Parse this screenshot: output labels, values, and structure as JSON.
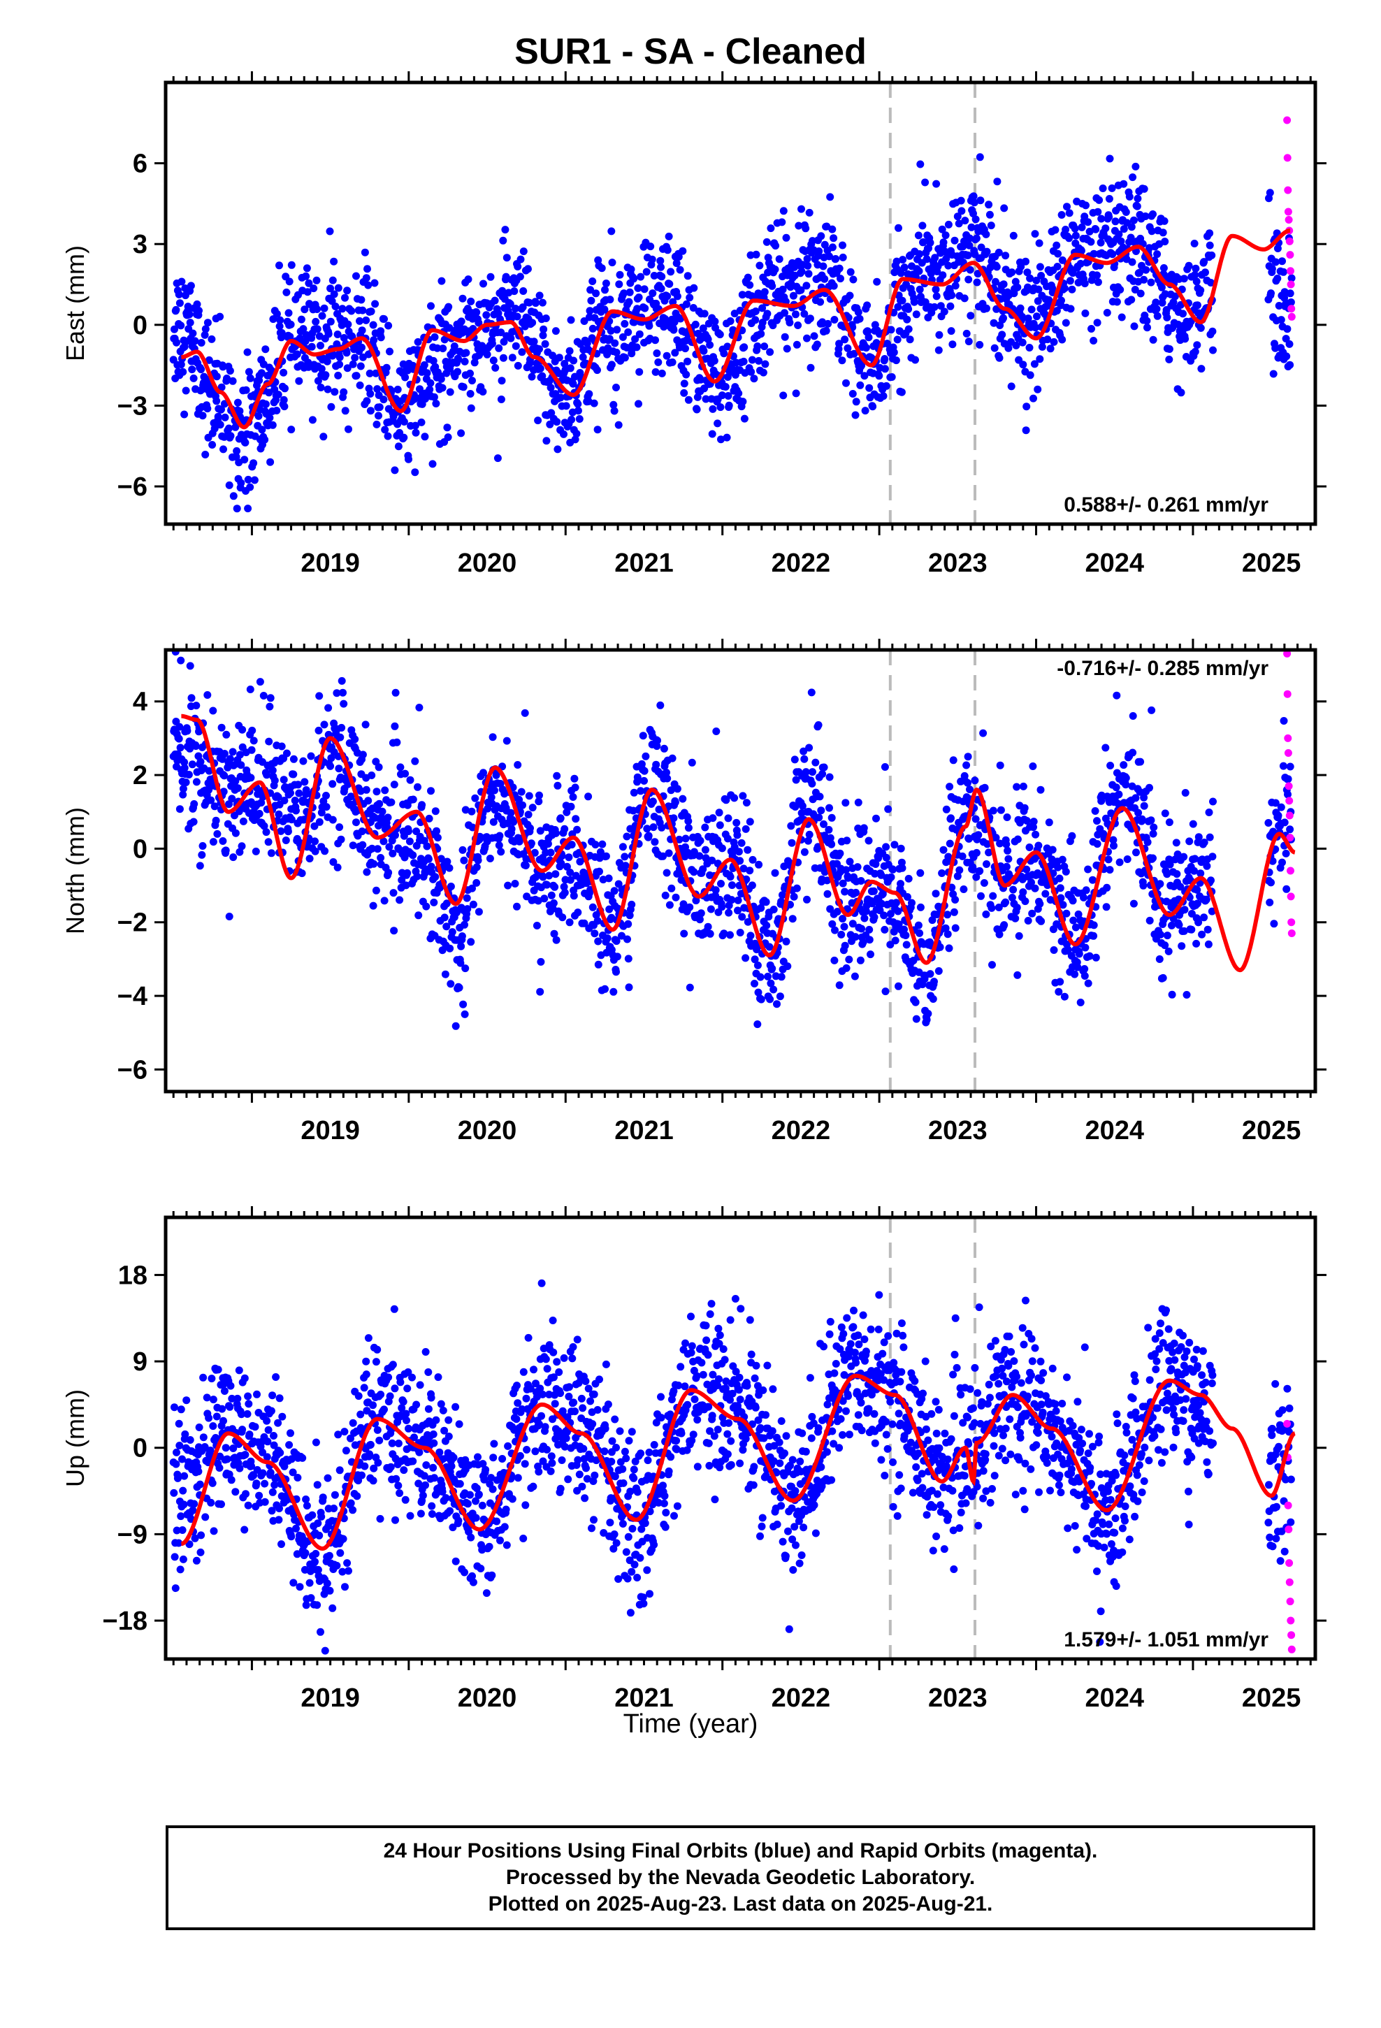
{
  "title": "SUR1  - SA - Cleaned",
  "xlabel": "Time (year)",
  "footer": {
    "line1": "24 Hour Positions Using Final Orbits (blue) and Rapid Orbits (magenta).",
    "line2": "Processed by the Nevada Geodetic Laboratory.",
    "line3": "Plotted on 2025-Aug-23. Last data on 2025-Aug-21."
  },
  "colors": {
    "final": "#0000ff",
    "rapid": "#ff00ff",
    "model": "#ff0000",
    "event_line": "#bbbbbb"
  },
  "chart_data": [
    {
      "type": "scatter",
      "name": "east",
      "ylabel": "East (mm)",
      "rate_text": "0.588+/- 0.261 mm/yr",
      "rate_position": "bottom-right",
      "xlim": [
        2018.45,
        2025.78
      ],
      "ylim": [
        -7.4,
        9.0
      ],
      "yticks": [
        -6,
        -3,
        0,
        3,
        6
      ],
      "xticks": [
        2019,
        2020,
        2021,
        2022,
        2023,
        2024,
        2025
      ],
      "event_lines": [
        2023.07,
        2023.61
      ],
      "model": {
        "x": [
          2018.55,
          2018.65,
          2018.8,
          2018.95,
          2019.1,
          2019.25,
          2019.4,
          2019.55,
          2019.7,
          2019.95,
          2020.15,
          2020.35,
          2020.5,
          2020.65,
          2020.8,
          2021.05,
          2021.3,
          2021.5,
          2021.7,
          2021.95,
          2022.2,
          2022.45,
          2022.65,
          2022.95,
          2023.15,
          2023.4,
          2023.6,
          2023.8,
          2024.0,
          2024.25,
          2024.45,
          2024.65,
          2024.85,
          2025.05,
          2025.25,
          2025.45,
          2025.62
        ],
        "y": [
          -1.2,
          -1.0,
          -2.5,
          -3.8,
          -2.2,
          -0.6,
          -1.1,
          -0.9,
          -0.5,
          -3.2,
          -0.2,
          -0.6,
          0.0,
          0.1,
          -1.2,
          -2.6,
          0.5,
          0.2,
          0.7,
          -2.1,
          0.9,
          0.7,
          1.3,
          -1.5,
          1.7,
          1.5,
          2.3,
          0.6,
          -0.5,
          2.6,
          2.3,
          2.9,
          1.5,
          0.1,
          3.3,
          2.8,
          3.5
        ]
      },
      "final_anchors": {
        "x": [
          2018.55,
          2018.8,
          2018.95,
          2019.3,
          2019.7,
          2019.95,
          2020.4,
          2020.65,
          2021.0,
          2021.3,
          2021.7,
          2022.0,
          2022.3,
          2022.65,
          2022.95,
          2023.3,
          2023.6,
          2023.95,
          2024.3,
          2024.65,
          2024.95,
          2025.4,
          2025.6
        ],
        "y": [
          0.0,
          -3.0,
          -4.0,
          -0.5,
          -0.6,
          -3.0,
          -0.3,
          0.2,
          -2.6,
          0.5,
          0.5,
          -2.1,
          1.0,
          1.8,
          -1.5,
          1.9,
          2.7,
          0.0,
          2.6,
          2.6,
          0.5,
          3.0,
          0.5
        ]
      },
      "final_gaps": [
        [
          2025.13,
          2025.48
        ]
      ],
      "final_range": [
        2018.5,
        2025.63
      ],
      "rapid_range": [
        2025.6,
        2025.63
      ],
      "rapid_values": [
        7.6,
        6.2,
        5.0,
        4.2,
        3.9,
        3.5,
        3.1,
        2.6,
        2.0,
        1.5,
        0.6,
        0.3
      ],
      "noise_sd": 1.25
    },
    {
      "type": "scatter",
      "name": "north",
      "ylabel": "North (mm)",
      "rate_text": "-0.716+/- 0.285 mm/yr",
      "rate_position": "top-right",
      "xlim": [
        2018.45,
        2025.78
      ],
      "ylim": [
        -6.6,
        5.4
      ],
      "yticks": [
        -6,
        -4,
        -2,
        0,
        2,
        4
      ],
      "xticks": [
        2019,
        2020,
        2021,
        2022,
        2023,
        2024,
        2025
      ],
      "event_lines": [
        2023.07,
        2023.61
      ],
      "model": {
        "x": [
          2018.55,
          2018.65,
          2018.85,
          2019.05,
          2019.25,
          2019.5,
          2019.8,
          2020.05,
          2020.3,
          2020.55,
          2020.85,
          2021.05,
          2021.3,
          2021.55,
          2021.85,
          2022.05,
          2022.3,
          2022.55,
          2022.8,
          2022.95,
          2023.1,
          2023.3,
          2023.55,
          2023.62,
          2023.8,
          2024.0,
          2024.25,
          2024.55,
          2024.85,
          2025.05,
          2025.3,
          2025.55,
          2025.65
        ],
        "y": [
          3.6,
          3.5,
          1.0,
          1.8,
          -0.8,
          3.0,
          0.3,
          1.0,
          -1.5,
          2.2,
          -0.6,
          0.3,
          -2.2,
          1.6,
          -1.3,
          -0.3,
          -2.9,
          0.8,
          -1.8,
          -0.9,
          -1.2,
          -3.1,
          0.6,
          1.6,
          -1.0,
          -0.1,
          -2.6,
          1.1,
          -1.8,
          -0.8,
          -3.3,
          0.4,
          -0.1
        ]
      },
      "final_anchors": {
        "x": [
          2018.55,
          2018.8,
          2019.05,
          2019.3,
          2019.55,
          2019.8,
          2020.05,
          2020.3,
          2020.55,
          2020.85,
          2021.05,
          2021.3,
          2021.55,
          2021.85,
          2022.05,
          2022.3,
          2022.55,
          2022.8,
          2023.0,
          2023.3,
          2023.55,
          2023.8,
          2024.0,
          2024.25,
          2024.55,
          2024.85,
          2025.05,
          2025.45,
          2025.6
        ],
        "y": [
          2.6,
          1.5,
          1.8,
          0.8,
          2.5,
          0.5,
          0.3,
          -2.0,
          1.5,
          -0.5,
          -0.3,
          -2.2,
          1.8,
          -1.0,
          -0.3,
          -3.0,
          1.5,
          -1.5,
          -1.0,
          -3.0,
          1.0,
          -1.0,
          0.0,
          -2.5,
          1.5,
          -1.5,
          -1.0,
          -0.5,
          0.8
        ]
      },
      "final_gaps": [
        [
          2025.13,
          2025.48
        ]
      ],
      "final_range": [
        2018.5,
        2025.63
      ],
      "rapid_range": [
        2025.6,
        2025.63
      ],
      "rapid_values": [
        5.3,
        4.2,
        3.0,
        2.6,
        1.7,
        1.3,
        0.9,
        0.3,
        -0.6,
        -1.3,
        -2.0,
        -2.3
      ],
      "noise_sd": 1.0
    },
    {
      "type": "scatter",
      "name": "up",
      "ylabel": "Up (mm)",
      "rate_text": "1.579+/- 1.051 mm/yr",
      "rate_position": "bottom-right",
      "xlim": [
        2018.45,
        2025.78
      ],
      "ylim": [
        -22.0,
        24.0
      ],
      "yticks": [
        -18,
        -9,
        0,
        9,
        18
      ],
      "xticks": [
        2019,
        2020,
        2021,
        2022,
        2023,
        2024,
        2025
      ],
      "event_lines": [
        2023.07,
        2023.61
      ],
      "model": {
        "x": [
          2018.55,
          2018.85,
          2019.1,
          2019.45,
          2019.8,
          2020.1,
          2020.45,
          2020.85,
          2021.1,
          2021.45,
          2021.8,
          2022.1,
          2022.45,
          2022.85,
          2023.1,
          2023.4,
          2023.55,
          2023.6,
          2023.62,
          2023.85,
          2024.1,
          2024.45,
          2024.85,
          2025.05,
          2025.25,
          2025.5,
          2025.65
        ],
        "y": [
          -10.0,
          1.5,
          -1.5,
          -10.5,
          3.0,
          0.0,
          -8.5,
          4.5,
          1.5,
          -7.5,
          6.0,
          3.0,
          -5.5,
          7.5,
          5.5,
          -3.5,
          0.0,
          -3.5,
          0.5,
          5.5,
          2.0,
          -6.5,
          7.0,
          5.5,
          2.0,
          -5.0,
          1.5
        ]
      },
      "final_anchors": {
        "x": [
          2018.55,
          2018.85,
          2019.1,
          2019.45,
          2019.8,
          2020.1,
          2020.45,
          2020.85,
          2021.1,
          2021.45,
          2021.8,
          2022.1,
          2022.45,
          2022.85,
          2023.1,
          2023.4,
          2023.6,
          2023.85,
          2024.1,
          2024.45,
          2024.85,
          2025.05,
          2025.5,
          2025.6
        ],
        "y": [
          -5.0,
          2.0,
          -2.0,
          -11.0,
          3.5,
          1.0,
          -8.0,
          5.0,
          2.0,
          -9.0,
          6.0,
          4.5,
          -5.5,
          8.0,
          5.0,
          -3.0,
          0.0,
          6.5,
          2.0,
          -7.0,
          7.0,
          3.0,
          -3.0,
          -1.0
        ]
      },
      "final_gaps": [
        [
          2025.13,
          2025.48
        ]
      ],
      "final_range": [
        2018.5,
        2025.63
      ],
      "rapid_range": [
        2025.6,
        2025.63
      ],
      "rapid_values": [
        2.5,
        -1.0,
        -6.0,
        -8.5,
        -12.0,
        -14.0,
        -16.0,
        -18.0,
        -19.5,
        -21.0
      ],
      "noise_sd": 4.0
    }
  ]
}
